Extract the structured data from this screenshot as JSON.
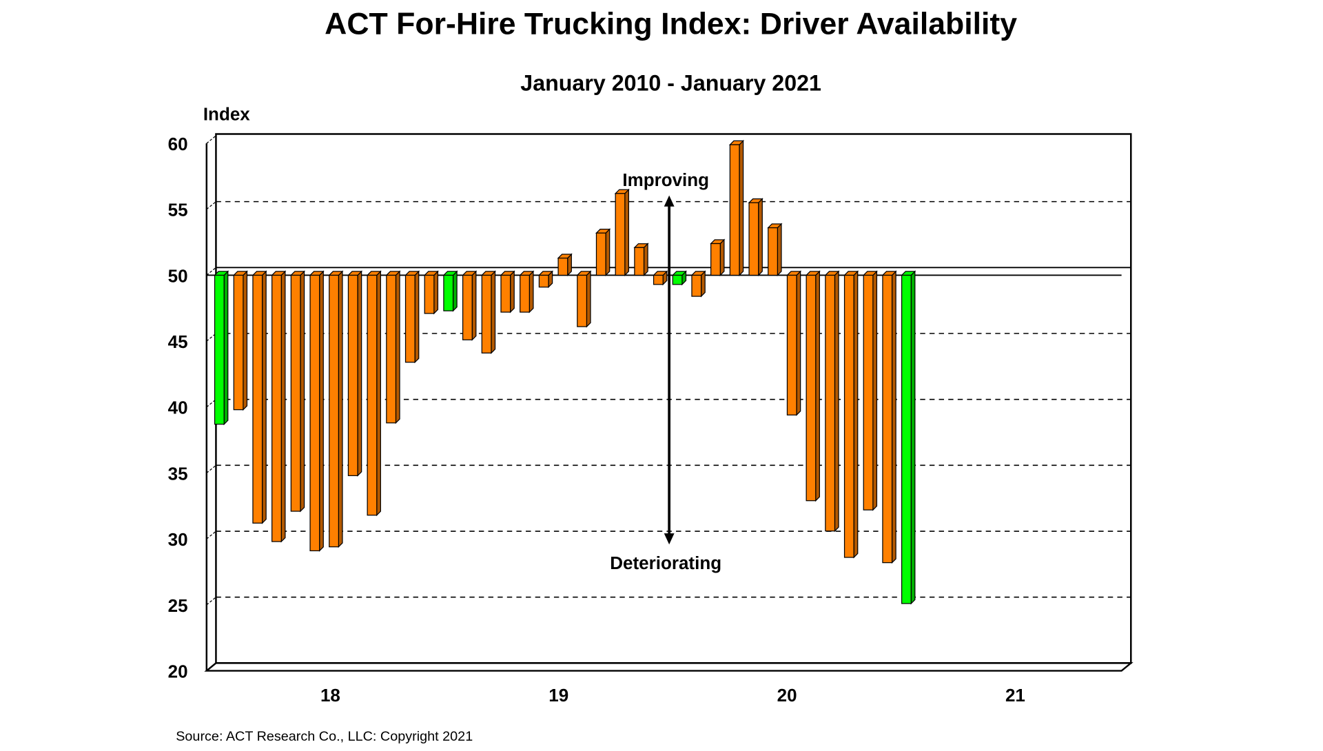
{
  "chart_data": {
    "type": "bar",
    "title": "ACT For-Hire Trucking Index: Driver Availability",
    "subtitle": "January 2010 - January 2021",
    "ylabel": "Index",
    "xlabel": "",
    "ylim": [
      20,
      60
    ],
    "yticks": [
      "60",
      "55",
      "50",
      "45",
      "40",
      "35",
      "30",
      "25",
      "20"
    ],
    "xticks": [
      "18",
      "19",
      "20",
      "21"
    ],
    "baseline": 50,
    "grid": true,
    "colors": {
      "default": "#FF8000",
      "january": "#00FF00"
    },
    "values": [
      38.7,
      39.8,
      31.2,
      29.8,
      32.1,
      29.1,
      29.4,
      34.8,
      31.8,
      38.8,
      43.4,
      47.1,
      47.3,
      45.1,
      44.1,
      47.2,
      47.2,
      49.1,
      51.3,
      46.1,
      53.2,
      56.2,
      52.1,
      49.3,
      49.3,
      48.4,
      52.4,
      59.9,
      55.5,
      53.6,
      39.4,
      32.9,
      30.6,
      28.6,
      32.2,
      28.2,
      25.1
    ],
    "highlighted_indices": [
      0,
      12,
      24,
      36
    ],
    "annotations": {
      "up": "Improving",
      "down": "Deteriorating"
    },
    "source": "Source: ACT Research Co., LLC: Copyright 2021"
  }
}
